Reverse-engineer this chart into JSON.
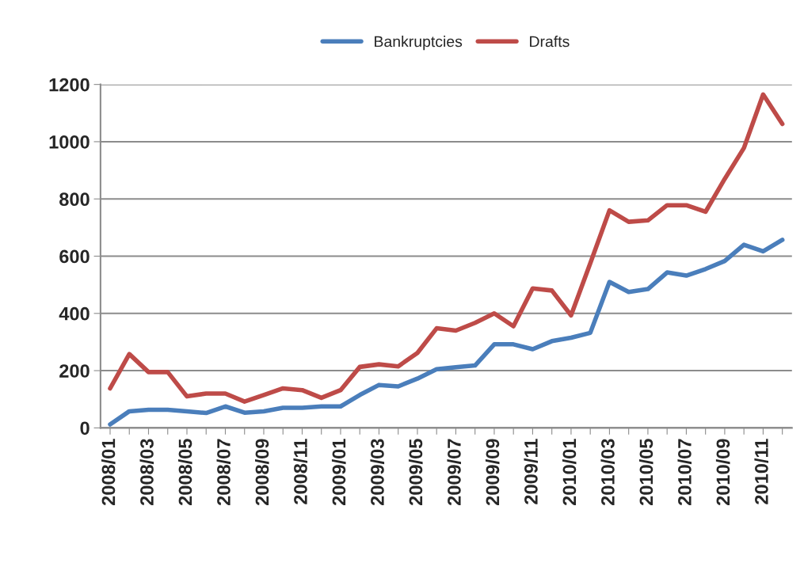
{
  "chart_data": {
    "type": "line",
    "categories": [
      "2008/01",
      null,
      "2008/03",
      null,
      "2008/05",
      null,
      "2008/07",
      null,
      "2008/09",
      null,
      "2008/11",
      null,
      "2009/01",
      null,
      "2009/03",
      null,
      "2009/05",
      null,
      "2009/07",
      null,
      "2009/09",
      null,
      "2009/11",
      null,
      "2010/01",
      null,
      "2010/03",
      null,
      "2010/05",
      null,
      "2010/07",
      null,
      "2010/09",
      null,
      "2010/11",
      null
    ],
    "series": [
      {
        "name": "Bankruptcies",
        "color": "#4a7ebb",
        "values": [
          12,
          58,
          63,
          63,
          58,
          52,
          75,
          53,
          58,
          70,
          70,
          75,
          75,
          115,
          150,
          145,
          172,
          205,
          212,
          218,
          292,
          292,
          275,
          303,
          315,
          332,
          510,
          475,
          485,
          543,
          532,
          555,
          583,
          640,
          617,
          657
        ]
      },
      {
        "name": "Drafts",
        "color": "#be4b48",
        "values": [
          138,
          258,
          195,
          195,
          110,
          120,
          120,
          92,
          115,
          138,
          132,
          105,
          132,
          213,
          222,
          215,
          262,
          348,
          340,
          367,
          400,
          355,
          487,
          480,
          393,
          575,
          760,
          720,
          725,
          778,
          778,
          755,
          870,
          978,
          1165,
          1062
        ]
      }
    ],
    "ylim": [
      0,
      1200
    ],
    "yticks": [
      0,
      200,
      400,
      600,
      800,
      1000,
      1200
    ],
    "grid": "y",
    "legend": "top",
    "marker": "none",
    "line_style": "solid"
  }
}
